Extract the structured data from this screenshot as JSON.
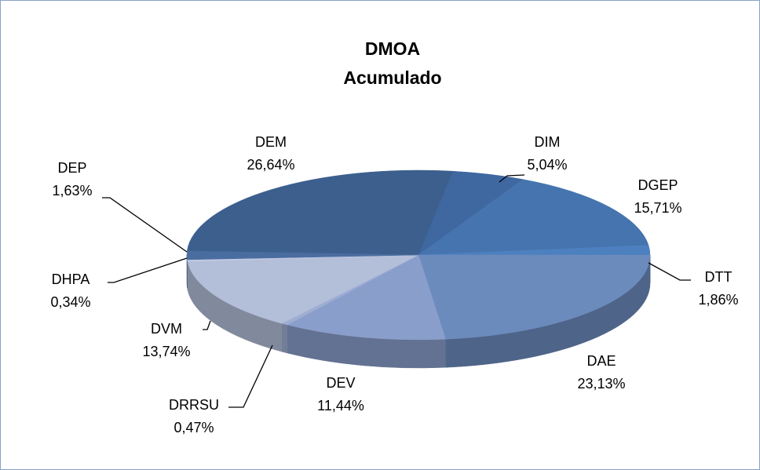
{
  "chart_data": {
    "type": "pie3d",
    "title": "DMOA",
    "subtitle": "Acumulado",
    "categories": [
      "DEM",
      "DIM",
      "DGEP",
      "DTT",
      "DAE",
      "DEV",
      "DRRSU",
      "DVM",
      "DHPA",
      "DEP"
    ],
    "values": [
      26.64,
      5.04,
      15.71,
      1.86,
      23.13,
      11.44,
      0.47,
      13.74,
      0.34,
      1.63
    ],
    "value_labels": [
      "26,64%",
      "5,04%",
      "15,71%",
      "1,86%",
      "23,13%",
      "11,44%",
      "0,47%",
      "13,74%",
      "0,34%",
      "1,63%"
    ],
    "colors": [
      "#3c5f8e",
      "#3f67a0",
      "#4574ae",
      "#4d80bf",
      "#6c8bbd",
      "#8a9ecb",
      "#9eadd2",
      "#b3bed9",
      "#bfc8e0",
      "#4a6da0"
    ]
  }
}
